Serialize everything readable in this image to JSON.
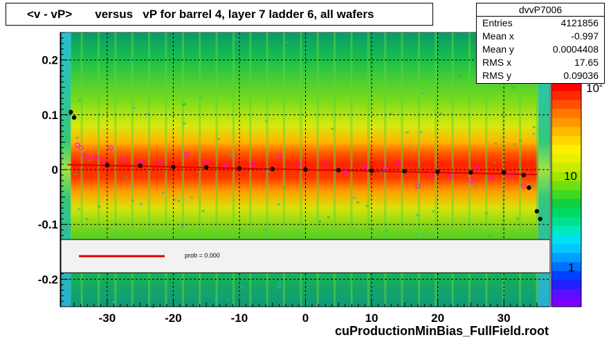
{
  "title": "<v - vP>       versus   vP for barrel 4, layer 7 ladder 6, all wafers",
  "stats": {
    "name": "dvvP7006",
    "rows": [
      {
        "label": "Entries",
        "value": "4121856"
      },
      {
        "label": "Mean x",
        "value": "-0.997"
      },
      {
        "label": "Mean y",
        "value": "0.0004408"
      },
      {
        "label": "RMS x",
        "value": "17.65"
      },
      {
        "label": "RMS y",
        "value": "0.09036"
      }
    ]
  },
  "fit_legend": {
    "text": "prob = 0.000",
    "line_color": "#e00000"
  },
  "footer": "cuProductionMinBias_FullField.root",
  "palette_labels": [
    "10",
    "1"
  ],
  "colors": {
    "profile_black": "#000000",
    "profile_magenta": "#ff00ff",
    "fit_red": "#e00000"
  },
  "chart_data": {
    "type": "heatmap",
    "title": "<v - vP>       versus   vP for barrel 4, layer 7 ladder 6, all wafers",
    "xlabel": "",
    "ylabel": "",
    "xlim": [
      -37,
      37
    ],
    "ylim": [
      -0.25,
      0.25
    ],
    "x_ticks": [
      -30,
      -20,
      -10,
      0,
      10,
      20,
      30
    ],
    "y_ticks": [
      0.2,
      0.1,
      0,
      -0.1,
      -0.2
    ],
    "z_scale": "log",
    "z_tick_labels": [
      "1",
      "10"
    ],
    "grid": true,
    "profile_black": [
      {
        "x": -35.5,
        "y": 0.105
      },
      {
        "x": -35.0,
        "y": 0.095
      },
      {
        "x": -30,
        "y": 0.008
      },
      {
        "x": -25,
        "y": 0.007
      },
      {
        "x": -20,
        "y": 0.005
      },
      {
        "x": -15,
        "y": 0.004
      },
      {
        "x": -10,
        "y": 0.002
      },
      {
        "x": -5,
        "y": 0.001
      },
      {
        "x": 0,
        "y": 0.0
      },
      {
        "x": 5,
        "y": -0.001
      },
      {
        "x": 10,
        "y": -0.002
      },
      {
        "x": 15,
        "y": -0.003
      },
      {
        "x": 20,
        "y": -0.004
      },
      {
        "x": 25,
        "y": -0.005
      },
      {
        "x": 30,
        "y": -0.005
      },
      {
        "x": 33,
        "y": -0.01
      },
      {
        "x": 33.8,
        "y": -0.033
      },
      {
        "x": 35.0,
        "y": -0.076
      },
      {
        "x": 35.5,
        "y": -0.09
      }
    ],
    "profile_magenta": [
      {
        "x": -34.5,
        "y": 0.045
      },
      {
        "x": -34.0,
        "y": 0.04
      },
      {
        "x": -33.5,
        "y": 0.025
      },
      {
        "x": -33.0,
        "y": 0.022
      },
      {
        "x": -32.0,
        "y": 0.022
      },
      {
        "x": -31.5,
        "y": 0.022
      },
      {
        "x": -30.5,
        "y": 0.015
      },
      {
        "x": -29.5,
        "y": 0.04
      },
      {
        "x": -27.5,
        "y": 0.02
      },
      {
        "x": -25,
        "y": 0.015
      },
      {
        "x": -22,
        "y": 0.012
      },
      {
        "x": -18,
        "y": 0.028
      },
      {
        "x": -15,
        "y": 0.015
      },
      {
        "x": -12,
        "y": 0.008
      },
      {
        "x": -8,
        "y": 0.01
      },
      {
        "x": -4,
        "y": 0.025
      },
      {
        "x": -1,
        "y": 0.01
      },
      {
        "x": 3,
        "y": 0.01
      },
      {
        "x": 6,
        "y": -0.005
      },
      {
        "x": 9,
        "y": 0.005
      },
      {
        "x": 12,
        "y": 0.002
      },
      {
        "x": 14,
        "y": 0.012
      },
      {
        "x": 17,
        "y": -0.03
      },
      {
        "x": 19,
        "y": -0.01
      },
      {
        "x": 22,
        "y": -0.012
      },
      {
        "x": 25,
        "y": -0.02
      },
      {
        "x": 26,
        "y": 0.005
      },
      {
        "x": 28,
        "y": -0.015
      },
      {
        "x": 31,
        "y": -0.01
      },
      {
        "x": 33,
        "y": -0.03
      }
    ],
    "fit_line": {
      "x": [
        -36,
        35
      ],
      "y": [
        0.009,
        -0.009
      ]
    }
  }
}
